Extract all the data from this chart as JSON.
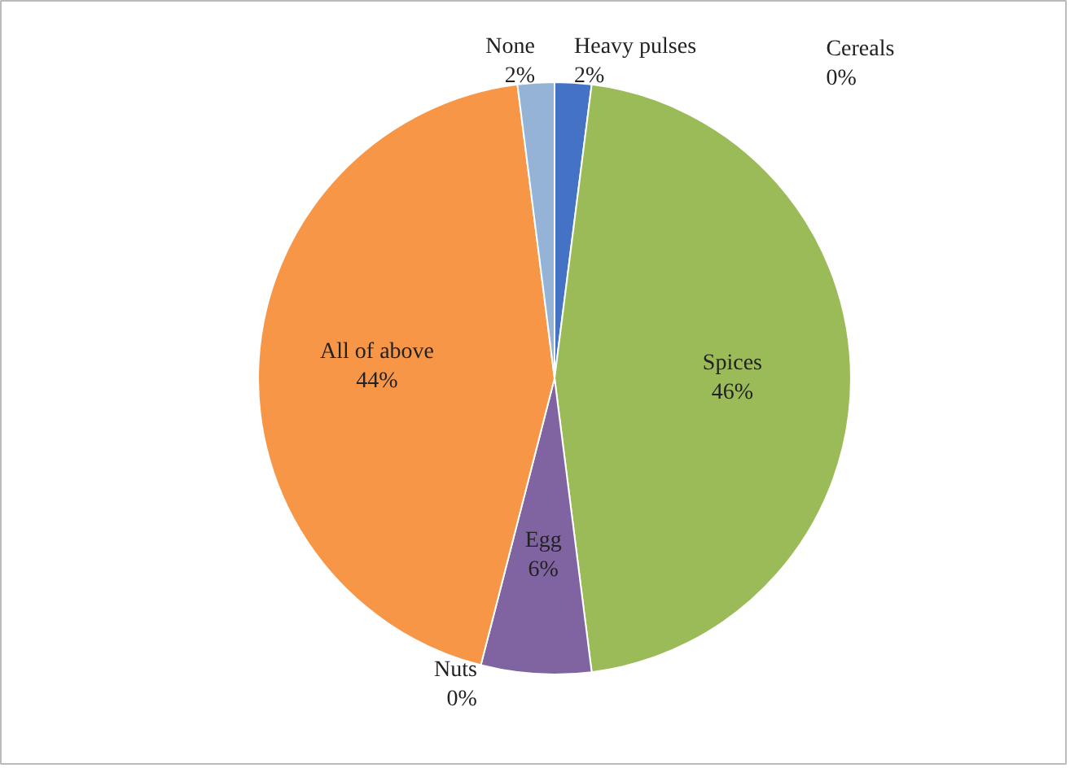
{
  "chart_data": {
    "type": "pie",
    "categories": [
      "Heavy pulses",
      "Cereals",
      "Spices",
      "Egg",
      "Nuts",
      "All of above",
      "None"
    ],
    "values": [
      2,
      0,
      46,
      6,
      0,
      44,
      2
    ],
    "value_labels": [
      "2%",
      "0%",
      "46%",
      "6%",
      "0%",
      "44%",
      "2%"
    ],
    "colors": [
      "#4472c4",
      "#c0504d",
      "#9bbb59",
      "#8064a2",
      "#4bacc6",
      "#f79646",
      "#95b3d7"
    ]
  }
}
